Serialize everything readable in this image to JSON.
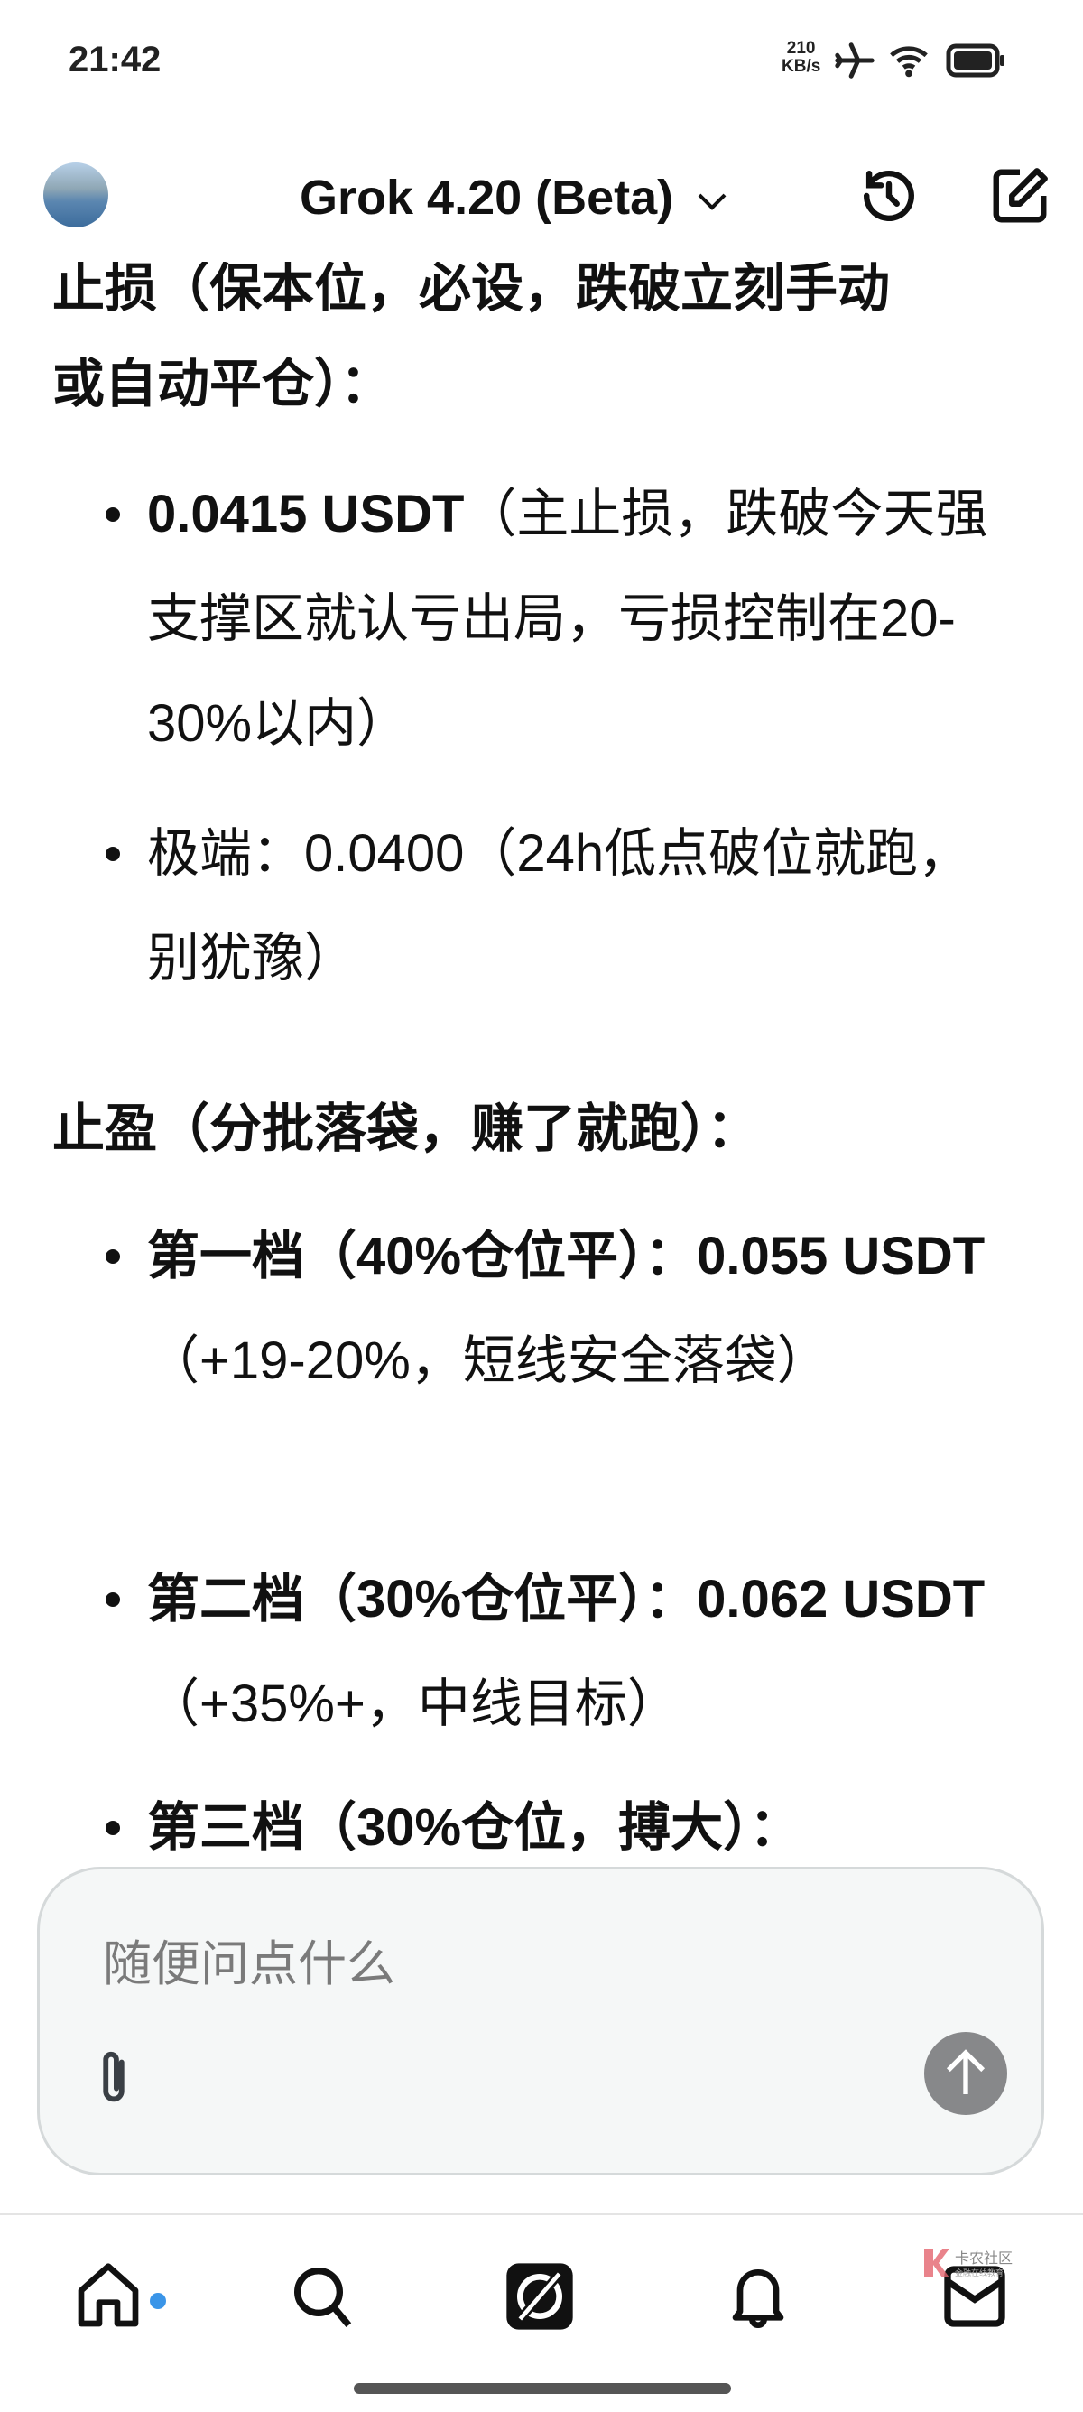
{
  "status_bar": {
    "time": "21:42",
    "speed_value": "210",
    "speed_unit": "KB/s"
  },
  "header": {
    "model_title": "Grok 4.20 (Beta)"
  },
  "content": {
    "stop_loss_heading_line1": "止损（保本位，必设，跌破立刻手动",
    "stop_loss_heading_line2": "或自动平仓）：",
    "stop_loss_items": [
      {
        "bold": "0.0415 USDT",
        "text": "（主止损，跌破今天强支撑区就认亏出局，亏损控制在20-30%以内）"
      },
      {
        "bold": "",
        "text": "极端：0.0400（24h低点破位就跑，别犹豫）"
      }
    ],
    "take_profit_heading": "止盈（分批落袋，赚了就跑）：",
    "take_profit_items": [
      {
        "label": "第一档（40%仓位平）：",
        "bold": "0.055 USDT",
        "text": "（+19-20%，短线安全落袋）"
      },
      {
        "label": "第二档（30%仓位平）：",
        "bold": "0.062 USDT",
        "text": "（+35%+，中线目标）"
      },
      {
        "label": "第三档（30%仓位，搏大）：",
        "bold": "",
        "text": ""
      }
    ]
  },
  "composer": {
    "placeholder": "随便问点什么"
  },
  "nav": {
    "items": [
      "home-icon",
      "search-icon",
      "grok-icon",
      "bell-icon",
      "mail-icon"
    ],
    "home_badge_color": "#3a95e8"
  },
  "watermark": {
    "name": "卡农社区",
    "tagline": "金融在线教育"
  }
}
